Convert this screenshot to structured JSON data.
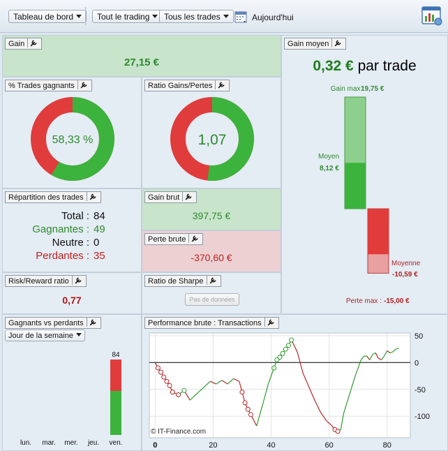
{
  "toolbar": {
    "dashboard_label": "Tableau de bord",
    "filter_label": "Tout le trading",
    "trades_label": "Tous les trades",
    "today_label": "Aujourd'hui"
  },
  "gain": {
    "title": "Gain",
    "value": "27,15 €"
  },
  "pct_winning": {
    "title": "% Trades gagnants",
    "value": "58,33 %",
    "fraction": 0.5833,
    "color_win": "#3cb33c",
    "color_loss": "#e03c3c"
  },
  "ratio": {
    "title": "Ratio Gains/Pertes",
    "value": "1,07",
    "fraction": 0.5168
  },
  "avg_gain": {
    "title": "Gain moyen",
    "value": "0,32 €",
    "suffix": "par trade",
    "max_gain_label": "Gain max :",
    "max_gain_value": "19,75 €",
    "mean_label": "Moyen",
    "mean_value": "8,12 €",
    "mean_loss_label": "Moyenne",
    "mean_loss_value": "-10,59 €",
    "max_loss_label": "Perte max :",
    "max_loss_value": "-15,00 €",
    "max_gain": 19.75,
    "mean_gain": 8.12,
    "mean_loss": 10.59,
    "max_loss": 15.0
  },
  "distribution": {
    "title": "Répartition des trades",
    "total_label": "Total :",
    "total": "84",
    "win_label": "Gagnantes :",
    "win": "49",
    "neutral_label": "Neutre :",
    "neutral": "0",
    "loss_label": "Perdantes :",
    "loss": "35"
  },
  "gross_gain": {
    "title": "Gain brut",
    "value": "397,75 €"
  },
  "gross_loss": {
    "title": "Perte brute",
    "value": "-370,60 €"
  },
  "risk_reward": {
    "title": "Risk/Reward ratio",
    "value": "0,77"
  },
  "sharpe": {
    "title": "Ratio de Sharpe",
    "nodata_label": "Pas de données"
  },
  "win_vs_loss": {
    "title": "Gagnants vs perdants",
    "dropdown": "Jour de la semaine"
  },
  "performance": {
    "title": "Performance brute : Transactions",
    "watermark": "© IT-Finance.com"
  },
  "chart_data": [
    {
      "type": "bar",
      "categories": [
        "lun.",
        "mar.",
        "mer.",
        "jeu.",
        "ven."
      ],
      "series": [
        {
          "name": "",
          "values": [
            0,
            0,
            0,
            0,
            49
          ]
        },
        {
          "name": "",
          "values": [
            0,
            0,
            0,
            0,
            35
          ]
        }
      ],
      "totals": [
        0,
        0,
        0,
        0,
        84
      ],
      "title": "",
      "xlabel": "",
      "ylabel": ""
    },
    {
      "type": "line",
      "title": "",
      "xlabel": "",
      "ylabel": "",
      "xlim": [
        -2,
        88
      ],
      "ylim": [
        -140,
        55
      ],
      "xticks": [
        "0",
        "20",
        "40",
        "60",
        "80"
      ],
      "yticks": [
        "50",
        "0",
        "-50",
        "-100"
      ],
      "grid": true,
      "x": [
        0,
        1,
        2,
        3,
        4,
        5,
        6,
        8,
        10,
        12,
        13,
        15,
        17,
        19,
        21,
        23,
        25,
        27,
        29,
        30,
        31,
        32,
        33,
        35,
        37,
        39,
        41,
        42,
        43,
        44,
        45,
        46,
        47,
        49,
        51,
        53,
        55,
        57,
        59,
        61,
        62,
        63,
        64,
        65,
        67,
        69,
        71,
        72,
        73,
        74,
        75,
        76,
        77,
        78,
        79,
        80,
        81,
        82,
        83,
        84
      ],
      "y": [
        0,
        -10,
        -18,
        -27,
        -35,
        -43,
        -55,
        -60,
        -52,
        -70,
        -65,
        -55,
        -45,
        -35,
        -40,
        -33,
        -40,
        -30,
        -35,
        -55,
        -75,
        -87,
        -97,
        -118,
        -80,
        -40,
        -10,
        5,
        10,
        17,
        25,
        32,
        42,
        20,
        -20,
        -45,
        -70,
        -92,
        -108,
        -118,
        -125,
        -128,
        -125,
        -95,
        -60,
        -25,
        5,
        12,
        12,
        5,
        15,
        18,
        8,
        5,
        12,
        22,
        18,
        20,
        25,
        27
      ],
      "markers": [
        1,
        2,
        3,
        4,
        5,
        6,
        8,
        10,
        30,
        31,
        32,
        33,
        41,
        42,
        43,
        44,
        45,
        46,
        47,
        62,
        63
      ]
    }
  ]
}
